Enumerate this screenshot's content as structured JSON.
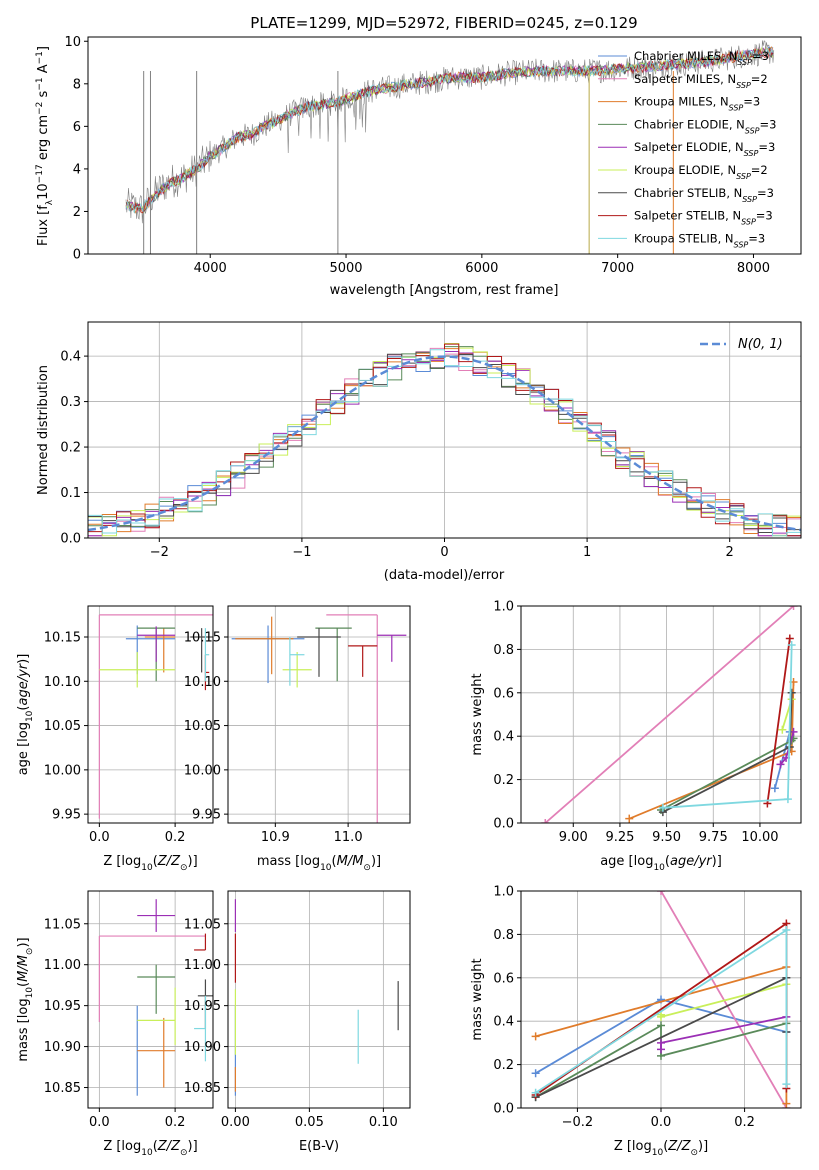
{
  "figure": {
    "title": "PLATE=1299, MJD=52972, FIBERID=0245, z=0.129",
    "colors": {
      "Chabrier MILES": "#5b8bd6",
      "Salpeter MILES": "#e27fb7",
      "Kroupa MILES": "#e07c2b",
      "Chabrier ELODIE": "#5a8a5a",
      "Salpeter ELODIE": "#9b2fb5",
      "Kroupa ELODIE": "#c9ef5a",
      "Chabrier STELIB": "#4a4a4a",
      "Salpeter STELIB": "#b01818",
      "Kroupa STELIB": "#7fd8e0"
    }
  },
  "chart_data": [
    {
      "id": "spectrum",
      "type": "line",
      "title": "PLATE=1299, MJD=52972, FIBERID=0245, z=0.129",
      "xlabel": "wavelength [Angstrom, rest frame]",
      "ylabel": "Flux [f_λ10^-17 erg cm^-2 s^-1 A^-1]",
      "xlim": [
        3100,
        8350
      ],
      "ylim": [
        0,
        10.2
      ],
      "xticks": [
        4000,
        5000,
        6000,
        7000,
        8000
      ],
      "yticks": [
        0,
        2,
        4,
        6,
        8,
        10
      ],
      "grid": false,
      "legend_position": "top-right",
      "data_spectrum": {
        "name": "",
        "color": "#808080",
        "x": [
          3380,
          3500,
          3600,
          3700,
          3800,
          3900,
          4000,
          4100,
          4200,
          4300,
          4400,
          4500,
          4600,
          4700,
          4800,
          4900,
          5000,
          5200,
          5400,
          5600,
          5800,
          6000,
          6200,
          6400,
          6600,
          6800,
          7000,
          7200,
          7400,
          7600,
          7800,
          8000,
          8150
        ],
        "y": [
          2.3,
          2.1,
          2.9,
          3.4,
          3.6,
          4.0,
          4.6,
          5.0,
          5.5,
          5.6,
          6.0,
          6.3,
          6.6,
          6.9,
          7.0,
          7.1,
          7.3,
          7.7,
          7.9,
          8.1,
          8.3,
          8.3,
          8.5,
          8.6,
          8.6,
          8.6,
          8.7,
          8.8,
          8.9,
          9.0,
          9.2,
          9.4,
          9.5
        ],
        "noise": 0.6
      },
      "series": [
        {
          "name": "Chabrier MILES",
          "nssp": "3"
        },
        {
          "name": "Salpeter MILES",
          "nssp": "2"
        },
        {
          "name": "Kroupa MILES",
          "nssp": "3"
        },
        {
          "name": "Chabrier ELODIE",
          "nssp": "3"
        },
        {
          "name": "Salpeter ELODIE",
          "nssp": "3"
        },
        {
          "name": "Kroupa ELODIE",
          "nssp": "2"
        },
        {
          "name": "Chabrier STELIB",
          "nssp": "3"
        },
        {
          "name": "Salpeter STELIB",
          "nssp": "3"
        },
        {
          "name": "Kroupa STELIB",
          "nssp": "3"
        }
      ],
      "model_x": [
        3380,
        3500,
        3600,
        3700,
        3800,
        3900,
        4000,
        4100,
        4200,
        4300,
        4400,
        4500,
        4600,
        4700,
        4800,
        4900,
        5000,
        5200,
        5400,
        5600,
        5800,
        6000,
        6200,
        6400,
        6600,
        6800,
        7000,
        7200,
        7400,
        7600,
        7800,
        8000,
        8150
      ],
      "model_y": [
        2.3,
        2.1,
        2.8,
        3.3,
        3.6,
        4.0,
        4.6,
        5.0,
        5.5,
        5.6,
        6.0,
        6.3,
        6.6,
        6.9,
        7.0,
        7.1,
        7.3,
        7.7,
        7.9,
        8.1,
        8.3,
        8.3,
        8.5,
        8.6,
        8.6,
        8.6,
        8.7,
        8.8,
        8.9,
        9.0,
        9.2,
        9.4,
        9.5
      ],
      "spikes": [
        {
          "x": 4940,
          "color": "#808080"
        },
        {
          "x": 6790,
          "color": "#b8a848"
        },
        {
          "x": 7410,
          "color": "#e07c2b"
        },
        {
          "x": 3510,
          "color": "#808080"
        },
        {
          "x": 3560,
          "color": "#808080"
        },
        {
          "x": 3900,
          "color": "#808080"
        }
      ]
    },
    {
      "id": "residual-histogram",
      "type": "line",
      "xlabel": "(data-model)/error",
      "ylabel": "Normed distribution",
      "xlim": [
        -2.5,
        2.5
      ],
      "ylim": [
        0,
        0.475
      ],
      "xticks": [
        -2,
        -1,
        0,
        1,
        2
      ],
      "yticks": [
        0.0,
        0.1,
        0.2,
        0.3,
        0.4
      ],
      "grid": true,
      "legend_position": "top-right",
      "legend": [
        {
          "name": "N(0, 1)",
          "style": "dashed",
          "color": "#5b8bd6"
        }
      ],
      "bin_width": 0.1,
      "bin_start": -2.5
    },
    {
      "id": "age-vs-Z",
      "type": "scatter",
      "xlabel": "Z [log10(Z/Z_sun)]",
      "ylabel": "age [log10(age/yr)]",
      "xlim": [
        -0.03,
        0.3
      ],
      "ylim": [
        9.94,
        10.185
      ],
      "xticks": [
        0.0,
        0.2
      ],
      "yticks": [
        9.95,
        10.0,
        10.05,
        10.1,
        10.15
      ],
      "grid": true,
      "points": [
        {
          "series": "Chabrier MILES",
          "x": 0.1,
          "y": 10.148,
          "xerr": [
            0.03,
            0.1
          ],
          "yerr": [
            0.04,
            0.015
          ]
        },
        {
          "series": "Salpeter MILES",
          "x": 0.0,
          "y": 10.175,
          "xerr": [
            0.0,
            0.3
          ],
          "yerr": [
            0.23,
            0.0
          ]
        },
        {
          "series": "Kroupa MILES",
          "x": 0.17,
          "y": 10.15,
          "xerr": [
            0.05,
            0.03
          ],
          "yerr": [
            0.04,
            0.01
          ]
        },
        {
          "series": "Chabrier ELODIE",
          "x": 0.15,
          "y": 10.16,
          "xerr": [
            0.05,
            0.05
          ],
          "yerr": [
            0.06,
            0.0
          ]
        },
        {
          "series": "Salpeter ELODIE",
          "x": 0.15,
          "y": 10.152,
          "xerr": [
            0.05,
            0.05
          ],
          "yerr": [
            0.03,
            0.01
          ]
        },
        {
          "series": "Kroupa ELODIE",
          "x": 0.1,
          "y": 10.113,
          "xerr": [
            0.1,
            0.1
          ],
          "yerr": [
            0.02,
            0.02
          ]
        },
        {
          "series": "Chabrier STELIB",
          "x": 0.27,
          "y": 10.15,
          "xerr": [
            0.03,
            0.03
          ],
          "yerr": [
            0.04,
            0.01
          ]
        },
        {
          "series": "Salpeter STELIB",
          "x": 0.28,
          "y": 10.11,
          "xerr": [
            0.0,
            0.01
          ],
          "yerr": [
            0.02,
            0.02
          ]
        },
        {
          "series": "Kroupa STELIB",
          "x": 0.28,
          "y": 10.13,
          "xerr": [
            0.0,
            0.01
          ],
          "yerr": [
            0.03,
            0.03
          ]
        }
      ]
    },
    {
      "id": "age-vs-mass",
      "type": "scatter",
      "xlabel": "mass [log10(M/M_sun)]",
      "ylabel": "",
      "xlim": [
        10.835,
        11.085
      ],
      "ylim": [
        9.94,
        10.185
      ],
      "xticks": [
        10.9,
        11.0
      ],
      "yticks": [
        9.95,
        10.0,
        10.05,
        10.1,
        10.15
      ],
      "grid": true,
      "points": [
        {
          "series": "Chabrier MILES",
          "x": 10.89,
          "y": 10.148,
          "xerr": [
            0.05,
            0.05
          ],
          "yerr": [
            0.05,
            0.015
          ]
        },
        {
          "series": "Salpeter MILES",
          "x": 11.04,
          "y": 10.175,
          "xerr": [
            0.07,
            0.0
          ],
          "yerr": [
            0.235,
            0.0
          ]
        },
        {
          "series": "Kroupa MILES",
          "x": 10.895,
          "y": 10.148,
          "xerr": [
            0.05,
            0.03
          ],
          "yerr": [
            0.04,
            0.025
          ]
        },
        {
          "series": "Chabrier ELODIE",
          "x": 10.985,
          "y": 10.16,
          "xerr": [
            0.03,
            0.02
          ],
          "yerr": [
            0.06,
            0.0
          ]
        },
        {
          "series": "Salpeter ELODIE",
          "x": 11.06,
          "y": 10.152,
          "xerr": [
            0.02,
            0.02
          ],
          "yerr": [
            0.03,
            0.0
          ]
        },
        {
          "series": "Kroupa ELODIE",
          "x": 10.93,
          "y": 10.113,
          "xerr": [
            0.02,
            0.02
          ],
          "yerr": [
            0.02,
            0.02
          ]
        },
        {
          "series": "Chabrier STELIB",
          "x": 10.96,
          "y": 10.15,
          "xerr": [
            0.03,
            0.03
          ],
          "yerr": [
            0.045,
            0.01
          ]
        },
        {
          "series": "Salpeter STELIB",
          "x": 11.02,
          "y": 10.14,
          "xerr": [
            0.02,
            0.02
          ],
          "yerr": [
            0.035,
            0.0
          ]
        },
        {
          "series": "Kroupa STELIB",
          "x": 10.92,
          "y": 10.13,
          "xerr": [
            0.0,
            0.02
          ],
          "yerr": [
            0.035,
            0.02
          ]
        }
      ]
    },
    {
      "id": "mass-weight-vs-age",
      "type": "line",
      "xlabel": "age [log10(age/yr)]",
      "ylabel": "mass weight",
      "xlim": [
        8.72,
        10.22
      ],
      "ylim": [
        0.0,
        1.0
      ],
      "xticks": [
        9.0,
        9.25,
        9.5,
        9.75,
        10.0
      ],
      "yticks": [
        0.0,
        0.2,
        0.4,
        0.6,
        0.8,
        1.0
      ],
      "grid": true,
      "series": [
        {
          "name": "Chabrier MILES",
          "x": [
            10.08,
            10.16
          ],
          "y": [
            0.16,
            0.42
          ]
        },
        {
          "name": "Salpeter MILES",
          "x": [
            8.85,
            10.18
          ],
          "y": [
            0.0,
            1.0
          ]
        },
        {
          "name": "Kroupa MILES",
          "x": [
            9.3,
            10.17,
            10.18
          ],
          "y": [
            0.02,
            0.33,
            0.65
          ]
        },
        {
          "name": "Chabrier ELODIE",
          "x": [
            9.47,
            10.17,
            10.18
          ],
          "y": [
            0.06,
            0.38,
            0.39
          ]
        },
        {
          "name": "Salpeter ELODIE",
          "x": [
            10.11,
            10.14,
            10.18
          ],
          "y": [
            0.27,
            0.3,
            0.42
          ]
        },
        {
          "name": "Kroupa ELODIE",
          "x": [
            10.12,
            10.17
          ],
          "y": [
            0.43,
            0.57
          ]
        },
        {
          "name": "Chabrier STELIB",
          "x": [
            9.48,
            10.16,
            10.17
          ],
          "y": [
            0.05,
            0.35,
            0.6
          ]
        },
        {
          "name": "Salpeter STELIB",
          "x": [
            10.04,
            10.16
          ],
          "y": [
            0.09,
            0.85
          ]
        },
        {
          "name": "Kroupa STELIB",
          "x": [
            9.48,
            10.15,
            10.17
          ],
          "y": [
            0.07,
            0.11,
            0.82
          ]
        }
      ]
    },
    {
      "id": "mass-vs-Z",
      "type": "scatter",
      "xlabel": "Z [log10(Z/Z_sun)]",
      "ylabel": "mass [log10(M/M_sun)]",
      "xlim": [
        -0.03,
        0.3
      ],
      "ylim": [
        10.825,
        11.09
      ],
      "xticks": [
        0.0,
        0.2
      ],
      "yticks": [
        10.85,
        10.9,
        10.95,
        11.0,
        11.05
      ],
      "grid": true,
      "points": [
        {
          "series": "Chabrier MILES",
          "x": 0.1,
          "y": 10.895,
          "xerr": [
            0.0,
            0.0
          ],
          "yerr": [
            0.055,
            0.055
          ]
        },
        {
          "series": "Salpeter MILES",
          "x": 0.0,
          "y": 11.035,
          "xerr": [
            0.0,
            0.28
          ],
          "yerr": [
            0.105,
            0.0
          ]
        },
        {
          "series": "Kroupa MILES",
          "x": 0.17,
          "y": 10.895,
          "xerr": [
            0.07,
            0.03
          ],
          "yerr": [
            0.045,
            0.04
          ]
        },
        {
          "series": "Chabrier ELODIE",
          "x": 0.15,
          "y": 10.985,
          "xerr": [
            0.05,
            0.05
          ],
          "yerr": [
            0.045,
            0.015
          ]
        },
        {
          "series": "Salpeter ELODIE",
          "x": 0.15,
          "y": 11.06,
          "xerr": [
            0.05,
            0.05
          ],
          "yerr": [
            0.02,
            0.02
          ]
        },
        {
          "series": "Kroupa ELODIE",
          "x": 0.2,
          "y": 10.932,
          "xerr": [
            0.1,
            0.0
          ],
          "yerr": [
            0.03,
            0.04
          ]
        },
        {
          "series": "Chabrier STELIB",
          "x": 0.28,
          "y": 10.962,
          "xerr": [
            0.02,
            0.02
          ],
          "yerr": [
            0.04,
            0.02
          ]
        },
        {
          "series": "Salpeter STELIB",
          "x": 0.28,
          "y": 11.018,
          "xerr": [
            0.03,
            0.0
          ],
          "yerr": [
            0.0,
            0.02
          ]
        },
        {
          "series": "Kroupa STELIB",
          "x": 0.28,
          "y": 10.922,
          "xerr": [
            0.03,
            0.0
          ],
          "yerr": [
            0.04,
            0.04
          ]
        }
      ]
    },
    {
      "id": "mass-vs-ebv",
      "type": "scatter",
      "xlabel": "E(B-V)",
      "ylabel": "",
      "xlim": [
        -0.005,
        0.118
      ],
      "ylim": [
        10.825,
        11.09
      ],
      "xticks": [
        0.0,
        0.05,
        0.1
      ],
      "yticks": [
        10.85,
        10.9,
        10.95,
        11.0,
        11.05
      ],
      "grid": true,
      "points": [
        {
          "series": "Chabrier MILES",
          "x": 0.0,
          "y": 10.895,
          "xerr": [
            0.0,
            0.0
          ],
          "yerr": [
            0.055,
            0.055
          ]
        },
        {
          "series": "Kroupa MILES",
          "x": 0.0,
          "y": 10.86,
          "xerr": [
            0.0,
            0.0
          ],
          "yerr": [
            0.015,
            0.015
          ]
        },
        {
          "series": "Salpeter ELODIE",
          "x": 0.0,
          "y": 11.06,
          "xerr": [
            0.0,
            0.0
          ],
          "yerr": [
            0.02,
            0.02
          ]
        },
        {
          "series": "Kroupa ELODIE",
          "x": 0.0,
          "y": 10.93,
          "xerr": [
            0.0,
            0.0
          ],
          "yerr": [
            0.04,
            0.04
          ]
        },
        {
          "series": "Salpeter STELIB",
          "x": 0.0,
          "y": 11.018,
          "xerr": [
            0.0,
            0.0
          ],
          "yerr": [
            0.04,
            0.02
          ]
        },
        {
          "series": "Chabrier STELIB",
          "x": 0.11,
          "y": 10.95,
          "xerr": [
            0.0,
            0.0
          ],
          "yerr": [
            0.03,
            0.03
          ]
        },
        {
          "series": "Kroupa STELIB",
          "x": 0.083,
          "y": 10.912,
          "xerr": [
            0.0,
            0.0
          ],
          "yerr": [
            0.033,
            0.033
          ]
        }
      ]
    },
    {
      "id": "mass-weight-vs-Z",
      "type": "line",
      "xlabel": "Z [log10(Z/Z_sun)]",
      "ylabel": "mass weight",
      "xlim": [
        -0.335,
        0.335
      ],
      "ylim": [
        0.0,
        1.0
      ],
      "xticks": [
        -0.2,
        0.0,
        0.2
      ],
      "yticks": [
        0.0,
        0.2,
        0.4,
        0.6,
        0.8,
        1.0
      ],
      "grid": true,
      "series": [
        {
          "name": "Chabrier MILES",
          "x": [
            -0.3,
            0.0,
            0.3
          ],
          "y": [
            0.16,
            0.5,
            0.35
          ]
        },
        {
          "name": "Salpeter MILES",
          "x": [
            0.0,
            0.3
          ],
          "y": [
            1.0,
            0.0
          ]
        },
        {
          "name": "Kroupa MILES",
          "x": [
            -0.3,
            0.3,
            0.3
          ],
          "y": [
            0.33,
            0.65,
            0.02
          ]
        },
        {
          "name": "Chabrier ELODIE",
          "x": [
            -0.3,
            0.0,
            0.0,
            0.3
          ],
          "y": [
            0.05,
            0.38,
            0.24,
            0.39
          ]
        },
        {
          "name": "Salpeter ELODIE",
          "x": [
            0.0,
            0.0,
            0.3
          ],
          "y": [
            0.27,
            0.3,
            0.42
          ]
        },
        {
          "name": "Kroupa ELODIE",
          "x": [
            0.0,
            0.0,
            0.3
          ],
          "y": [
            0.43,
            0.42,
            0.57
          ]
        },
        {
          "name": "Chabrier STELIB",
          "x": [
            -0.3,
            0.3,
            0.3
          ],
          "y": [
            0.05,
            0.6,
            0.35
          ]
        },
        {
          "name": "Salpeter STELIB",
          "x": [
            -0.3,
            0.3,
            0.3
          ],
          "y": [
            0.06,
            0.85,
            0.09
          ]
        },
        {
          "name": "Kroupa STELIB",
          "x": [
            -0.3,
            0.3,
            0.3
          ],
          "y": [
            0.07,
            0.82,
            0.11
          ]
        }
      ]
    }
  ]
}
